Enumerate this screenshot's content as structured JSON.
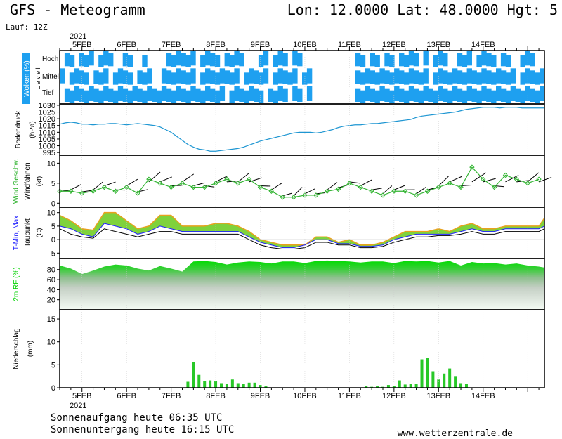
{
  "header": {
    "title": "GFS - Meteogramm",
    "location": "Lon: 12.0000 Lat: 48.0000 Hgt: 5",
    "run": "Lauf: 12Z"
  },
  "footer": {
    "sunrise": "Sonnenaufgang heute 06:35 UTC",
    "sunset": "Sonnenuntergang heute 16:15 UTC",
    "credit": "www.wetterzentrale.de"
  },
  "colors": {
    "clouds": "#1ea0f0",
    "pressure": "#1e96d2",
    "wind_speed": "#32b432",
    "tmin": "#1e1eff",
    "tmax": "#ff1e1e",
    "dewpoint": "#000000",
    "humidity": "#00d200",
    "precip": "#28c828"
  },
  "chart_data": {
    "x_axis": {
      "year": "2021",
      "dates": [
        "5FEB",
        "6FEB",
        "7FEB",
        "8FEB",
        "9FEB",
        "10FEB",
        "11FEB",
        "12FEB",
        "13FEB",
        "14FEB"
      ]
    },
    "panels": [
      {
        "id": "clouds",
        "type": "heatmap",
        "ylabel": "Wolken (%)",
        "ylabel2": "L e v e l",
        "levels": [
          "Hoch",
          "Mittel",
          "Tief"
        ]
      },
      {
        "id": "pressure",
        "type": "line",
        "ylabel": "Bodendruck",
        "ylabel2": "(hPa)",
        "ylim": [
          993,
          1031
        ],
        "ticks": [
          995,
          1000,
          1005,
          1010,
          1015,
          1020,
          1025,
          1030
        ],
        "x": [
          0,
          3,
          6,
          9,
          12,
          15,
          18,
          21,
          24,
          27,
          30,
          33,
          36,
          39,
          42,
          45,
          48,
          51,
          54,
          57,
          60,
          63,
          66,
          69,
          72,
          75,
          78,
          81,
          84,
          87,
          90,
          93,
          96,
          99,
          102,
          105,
          108,
          111,
          114,
          117,
          120,
          123,
          126,
          129,
          132,
          135,
          138,
          141,
          144,
          147,
          150,
          153,
          156,
          159,
          162,
          165,
          168,
          171,
          174,
          177,
          180,
          183,
          186,
          189,
          192,
          195,
          198,
          201,
          204,
          207,
          210,
          213,
          216,
          219,
          222,
          225,
          228,
          231,
          234,
          237,
          240,
          243,
          246,
          249,
          252,
          255,
          258,
          261
        ],
        "values": [
          1016,
          1017,
          1017.5,
          1017,
          1016,
          1016,
          1015.5,
          1016,
          1016,
          1016.5,
          1016.5,
          1016,
          1015.5,
          1016,
          1016.5,
          1016,
          1015.5,
          1015,
          1014,
          1012,
          1010,
          1007,
          1004,
          1001,
          999,
          997.5,
          997,
          996,
          996,
          996.5,
          997,
          997.5,
          998,
          999,
          1000.5,
          1002,
          1003.5,
          1004.5,
          1005.5,
          1006.5,
          1007.5,
          1008.5,
          1009.5,
          1010,
          1010,
          1010,
          1009.5,
          1010,
          1011,
          1012,
          1013.5,
          1014.5,
          1015,
          1015.5,
          1015.5,
          1016,
          1016.5,
          1016.5,
          1017,
          1017.5,
          1018,
          1018.5,
          1019,
          1019.5,
          1021,
          1022,
          1022.5,
          1023,
          1023.5,
          1024,
          1024.5,
          1025,
          1026,
          1027,
          1027.5,
          1028,
          1028.5,
          1028.5,
          1028.5,
          1028,
          1028.5,
          1028.5,
          1028.5,
          1028,
          1028,
          1028,
          1028,
          1028
        ]
      },
      {
        "id": "wind",
        "type": "line",
        "ylabel": "Wind Geschw.",
        "ylabel2": "Windfahnen",
        "ylabel3": "(kt)",
        "ylim": [
          -1,
          12
        ],
        "ticks": [
          0,
          5,
          10
        ],
        "x": [
          0,
          6,
          12,
          18,
          24,
          30,
          36,
          42,
          48,
          54,
          60,
          66,
          72,
          78,
          84,
          90,
          96,
          102,
          108,
          114,
          120,
          126,
          132,
          138,
          144,
          150,
          156,
          162,
          168,
          174,
          180,
          186,
          192,
          198,
          204,
          210,
          216,
          222,
          228,
          234,
          240,
          246,
          252,
          258
        ],
        "values": [
          3,
          3,
          2.5,
          3,
          4,
          3,
          4,
          2.5,
          6,
          5,
          4,
          5,
          4,
          4,
          5,
          6,
          5,
          6,
          4,
          3,
          1.5,
          1.5,
          2,
          2,
          3,
          3.5,
          5,
          4,
          3,
          2,
          3,
          3,
          2,
          3,
          4,
          5,
          4,
          9,
          6,
          4,
          7,
          6,
          5,
          6
        ]
      },
      {
        "id": "temperature",
        "type": "area",
        "ylabel": "T-Min, Max",
        "ylabel2": "Taupunkt",
        "ylabel3": "(C)",
        "ylim": [
          -7,
          12
        ],
        "ticks": [
          -5,
          0,
          5,
          10
        ],
        "x": [
          0,
          6,
          12,
          18,
          24,
          30,
          36,
          42,
          48,
          54,
          60,
          66,
          72,
          78,
          84,
          90,
          96,
          102,
          108,
          114,
          120,
          126,
          132,
          138,
          144,
          150,
          156,
          162,
          168,
          174,
          180,
          186,
          192,
          198,
          204,
          210,
          216,
          222,
          228,
          234,
          240,
          246,
          252,
          258,
          261
        ],
        "tmax": [
          9,
          7,
          4,
          3.5,
          10,
          10,
          7,
          4,
          5,
          9,
          9,
          5,
          5,
          5,
          6,
          6,
          5,
          3,
          0,
          -1,
          -2,
          -2,
          -2,
          1,
          1,
          -1,
          0,
          -2,
          -2,
          -1,
          1,
          3,
          3,
          3,
          4,
          3,
          5,
          6,
          4,
          4,
          5,
          5,
          5,
          5,
          8
        ],
        "tmin": [
          5,
          4,
          2,
          1,
          6,
          5,
          4,
          2,
          3,
          5,
          4,
          3,
          3,
          3,
          3,
          3,
          3,
          1,
          -1,
          -2,
          -3,
          -3,
          -2,
          0,
          0,
          -1.5,
          -1.5,
          -2.5,
          -2.5,
          -2,
          0,
          1,
          2,
          2,
          2,
          2,
          3,
          4,
          3,
          3,
          4,
          4,
          4,
          4,
          5
        ],
        "dewpoint": [
          4,
          2,
          1,
          0.5,
          4,
          3,
          2,
          1,
          2,
          3,
          3,
          2,
          2,
          2,
          2,
          2,
          2,
          0,
          -2,
          -3,
          -3.5,
          -3.5,
          -3,
          -1,
          -1,
          -2,
          -2,
          -3,
          -3,
          -2.5,
          -1,
          0,
          1,
          1,
          1.5,
          1.5,
          2,
          3,
          2,
          2,
          3,
          3,
          3,
          3,
          4
        ]
      },
      {
        "id": "humidity",
        "type": "area",
        "ylabel": "2m RF (%)",
        "ylim": [
          0,
          102
        ],
        "ticks": [
          20,
          40,
          60,
          80
        ],
        "x": [
          0,
          6,
          12,
          18,
          24,
          30,
          36,
          42,
          48,
          54,
          60,
          66,
          72,
          78,
          84,
          90,
          96,
          102,
          108,
          114,
          120,
          126,
          132,
          138,
          144,
          150,
          156,
          162,
          168,
          174,
          180,
          186,
          192,
          198,
          204,
          210,
          216,
          222,
          228,
          234,
          240,
          246,
          252,
          258,
          261
        ],
        "values": [
          88,
          82,
          71,
          78,
          86,
          90,
          88,
          82,
          78,
          87,
          82,
          76,
          96,
          97,
          95,
          90,
          94,
          96,
          95,
          92,
          96,
          96,
          93,
          97,
          98,
          97,
          96,
          94,
          96,
          96,
          93,
          97,
          96,
          97,
          94,
          97,
          88,
          95,
          92,
          93,
          90,
          92,
          88,
          86,
          84
        ]
      },
      {
        "id": "precip",
        "type": "bar",
        "ylabel": "Niederschlag",
        "ylabel2": "(mm)",
        "ylim": [
          0,
          17
        ],
        "ticks": [
          0,
          5,
          10,
          15
        ],
        "x": [
          69,
          72,
          75,
          78,
          81,
          84,
          87,
          90,
          93,
          96,
          99,
          102,
          105,
          108,
          111,
          165,
          168,
          171,
          174,
          177,
          180,
          183,
          186,
          189,
          192,
          195,
          198,
          201,
          204,
          207,
          210,
          213,
          216,
          219
        ],
        "values": [
          1.3,
          5.6,
          2.8,
          1.4,
          1.6,
          1.4,
          1,
          0.8,
          1.8,
          1,
          0.8,
          1.1,
          1.1,
          0.6,
          0.3,
          0.4,
          0.2,
          0.3,
          0.2,
          0.6,
          0.4,
          1.6,
          0.7,
          0.9,
          0.9,
          6.2,
          6.5,
          3.6,
          1.8,
          3.1,
          4.2,
          2.4,
          1,
          0.8
        ]
      }
    ]
  }
}
